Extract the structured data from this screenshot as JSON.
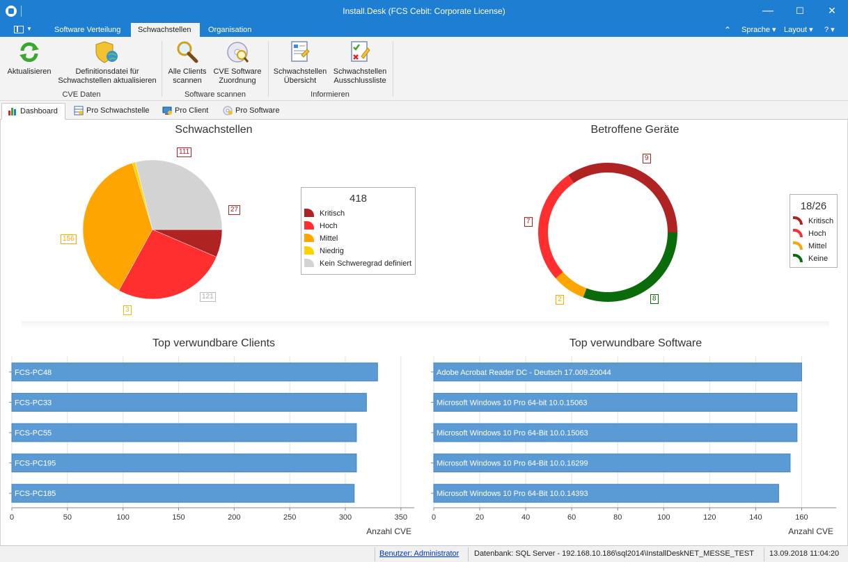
{
  "window": {
    "title": "Install.Desk (FCS Cebit: Corporate License)",
    "minimize": "—",
    "maximize": "☐",
    "close": "✕"
  },
  "ribbon_tabs": [
    {
      "label": "Software Verteilung",
      "active": false
    },
    {
      "label": "Schwachstellen",
      "active": true
    },
    {
      "label": "Organisation",
      "active": false
    }
  ],
  "ribbon_right": {
    "collapse": "⌃",
    "language": "Sprache ▾",
    "layout": "Layout ▾",
    "help": "? ▾"
  },
  "ribbon": {
    "groups": [
      {
        "label": "CVE Daten",
        "buttons": [
          "Aktualisieren",
          "Definitionsdatei für Schwachstellen aktualisieren"
        ]
      },
      {
        "label": "Software scannen",
        "buttons": [
          "Alle Clients scannen",
          "CVE Software Zuordnung"
        ]
      },
      {
        "label": "Informieren",
        "buttons": [
          "Schwachstellen Übersicht",
          "Schwachstellen Ausschlussliste"
        ]
      }
    ],
    "btn_refresh_l1": "Aktualisieren",
    "btn_defs_l1": "Definitionsdatei für",
    "btn_defs_l2": "Schwachstellen aktualisieren",
    "btn_scan_l1": "Alle Clients",
    "btn_scan_l2": "scannen",
    "btn_cve_l1": "CVE Software",
    "btn_cve_l2": "Zuordnung",
    "btn_overview_l1": "Schwachstellen",
    "btn_overview_l2": "Übersicht",
    "btn_excl_l1": "Schwachstellen",
    "btn_excl_l2": "Ausschlussliste",
    "group_cve": "CVE Daten",
    "group_scan": "Software scannen",
    "group_info": "Informieren"
  },
  "view_tabs": {
    "dashboard": "Dashboard",
    "per_vuln": "Pro Schwachstelle",
    "per_client": "Pro Client",
    "per_software": "Pro Software"
  },
  "colors": {
    "kritisch": "#b02323",
    "hoch": "#ff2f2f",
    "mittel": "#ffa500",
    "niedrig": "#ffd200",
    "keine_def": "#d3d3d3",
    "keine": "#0a6b0a",
    "bar": "#5b9bd5",
    "accent": "#1e7ed1"
  },
  "chart_data": [
    {
      "type": "pie",
      "title": "Schwachstellen",
      "total_label": "418",
      "slices": [
        {
          "name": "Kritisch",
          "value": 27,
          "color": "#b02323"
        },
        {
          "name": "Hoch",
          "value": 111,
          "color": "#ff2f2f"
        },
        {
          "name": "Mittel",
          "value": 156,
          "color": "#ffa500"
        },
        {
          "name": "Niedrig",
          "value": 3,
          "color": "#ffd200"
        },
        {
          "name": "Kein Schweregrad definiert",
          "value": 121,
          "color": "#d3d3d3"
        }
      ],
      "legend": [
        "Kritisch",
        "Hoch",
        "Mittel",
        "Niedrig",
        "Kein Schweregrad definiert"
      ]
    },
    {
      "type": "pie",
      "subtype": "donut",
      "title": "Betroffene Geräte",
      "total_label": "18/26",
      "slices": [
        {
          "name": "Kritisch",
          "value": 9,
          "color": "#b02323"
        },
        {
          "name": "Hoch",
          "value": 7,
          "color": "#ff2f2f"
        },
        {
          "name": "Mittel",
          "value": 2,
          "color": "#ffa500"
        },
        {
          "name": "Keine",
          "value": 8,
          "color": "#0a6b0a"
        }
      ],
      "legend": [
        "Kritisch",
        "Hoch",
        "Mittel",
        "Keine"
      ]
    },
    {
      "type": "bar",
      "orientation": "horizontal",
      "title": "Top verwundbare Clients",
      "categories": [
        "FCS-PC48",
        "FCS-PC33",
        "FCS-PC55",
        "FCS-PC195",
        "FCS-PC185"
      ],
      "values": [
        329,
        319,
        310,
        310,
        308
      ],
      "xlabel": "Anzahl CVE",
      "xlim": [
        0,
        362
      ],
      "xticks": [
        0,
        50,
        100,
        150,
        200,
        250,
        300,
        350
      ],
      "grid": true
    },
    {
      "type": "bar",
      "orientation": "horizontal",
      "title": "Top verwundbare Software",
      "categories": [
        "Adobe Acrobat Reader DC - Deutsch 17.009.20044",
        "Microsoft Windows 10 Pro 64-bit 10.0.15063",
        "Microsoft Windows 10 Pro 64-Bit 10.0.15063",
        "Microsoft Windows 10 Pro 64-Bit 10.0.16299",
        "Microsoft Windows 10 Pro 64-Bit 10.0.14393"
      ],
      "values": [
        160,
        158,
        158,
        155,
        150
      ],
      "xlabel": "Anzahl CVE",
      "xlim": [
        0,
        175
      ],
      "xticks": [
        0,
        20,
        40,
        60,
        80,
        100,
        120,
        140,
        160
      ],
      "grid": true
    }
  ],
  "statusbar": {
    "user": "Benutzer: Administrator",
    "database": "Datenbank: SQL Server - 192.168.10.186\\sql2014\\InstallDeskNET_MESSE_TEST",
    "datetime": "13.09.2018 11:04:20"
  }
}
